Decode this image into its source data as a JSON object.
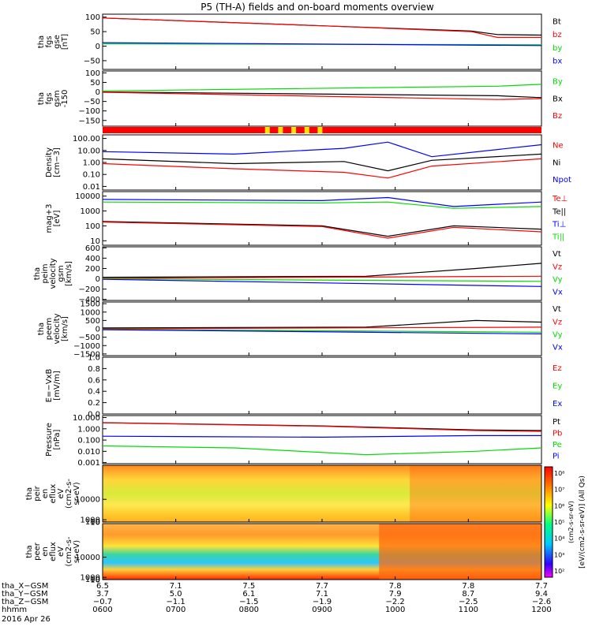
{
  "title": "P5 (TH-A) fields and on-board moments overview",
  "colors": {
    "black": "#000000",
    "red": "#ff0000",
    "green": "#00dd00",
    "blue": "#0000ff"
  },
  "chart_data": [
    {
      "type": "line",
      "panel": "fgs-gse",
      "ylabel": [
        "tha",
        "fgs",
        "gse",
        "[nT]"
      ],
      "ticks": [
        "100",
        "50",
        "0",
        "−50"
      ],
      "tick_values": [
        100,
        50,
        0,
        -50
      ],
      "ylim": [
        -80,
        110
      ],
      "series": [
        {
          "name": "Bt",
          "color": "#000000"
        },
        {
          "name": "bz",
          "color": "#ff0000"
        },
        {
          "name": "by",
          "color": "#00dd00"
        },
        {
          "name": "bx",
          "color": "#0000ff"
        }
      ],
      "legend": [
        "Bt",
        "bz",
        "by",
        "bx"
      ],
      "values": {
        "Bt": [
          [
            0,
            97
          ],
          [
            0.5,
            70
          ],
          [
            0.84,
            52
          ],
          [
            0.9,
            40
          ],
          [
            1,
            38
          ]
        ],
        "bz": [
          [
            0,
            97
          ],
          [
            0.5,
            70
          ],
          [
            0.84,
            50
          ],
          [
            0.9,
            30
          ],
          [
            1,
            30
          ]
        ],
        "by": [
          [
            0,
            8
          ],
          [
            1,
            5
          ]
        ],
        "bx": [
          [
            0,
            12
          ],
          [
            1,
            2
          ]
        ]
      }
    },
    {
      "type": "line",
      "panel": "fgs-gsm",
      "ylabel": [
        "tha",
        "fgs",
        "gsm",
        "-150"
      ],
      "ticks": [
        "100",
        "50",
        "0",
        "−50",
        "−100",
        "−150"
      ],
      "tick_values": [
        100,
        50,
        0,
        -50,
        -100,
        -150
      ],
      "ylim": [
        -180,
        110
      ],
      "series": [
        {
          "name": "By",
          "color": "#00dd00"
        },
        {
          "name": "Bx",
          "color": "#000000"
        },
        {
          "name": "Bz",
          "color": "#ff0000"
        }
      ],
      "legend": [
        "By",
        "Bx",
        "Bz"
      ],
      "values": {
        "By": [
          [
            0,
            5
          ],
          [
            0.9,
            30
          ],
          [
            1,
            40
          ]
        ],
        "Bx": [
          [
            0,
            0
          ],
          [
            0.9,
            -20
          ],
          [
            1,
            -30
          ]
        ],
        "Bz": [
          [
            0,
            -2
          ],
          [
            0.9,
            -40
          ],
          [
            1,
            -35
          ]
        ]
      }
    },
    {
      "type": "line",
      "panel": "density",
      "log": true,
      "ylabel": [
        "Density",
        "[cm−3]"
      ],
      "ticks": [
        "100.00",
        "10.00",
        "1.00",
        "0.10",
        "0.01"
      ],
      "tick_values": [
        100,
        10,
        1,
        0.1,
        0.01
      ],
      "ylim": [
        0.005,
        200
      ],
      "series": [
        {
          "name": "Ne",
          "color": "#ff0000"
        },
        {
          "name": "Ni",
          "color": "#000000"
        },
        {
          "name": "Npot",
          "color": "#0000ff"
        }
      ],
      "legend": [
        "Ne",
        "Ni",
        "Npot"
      ],
      "values": {
        "Npot": [
          [
            0,
            8
          ],
          [
            0.3,
            5
          ],
          [
            0.55,
            15
          ],
          [
            0.65,
            50
          ],
          [
            0.75,
            3
          ],
          [
            1,
            30
          ]
        ],
        "Ni": [
          [
            0,
            2
          ],
          [
            0.3,
            0.8
          ],
          [
            0.55,
            1.2
          ],
          [
            0.65,
            0.2
          ],
          [
            0.75,
            1.5
          ],
          [
            1,
            5
          ]
        ],
        "Ne": [
          [
            0,
            0.8
          ],
          [
            0.3,
            0.3
          ],
          [
            0.55,
            0.15
          ],
          [
            0.65,
            0.05
          ],
          [
            0.75,
            0.5
          ],
          [
            1,
            2
          ]
        ]
      }
    },
    {
      "type": "line",
      "panel": "temperature",
      "log": true,
      "ylabel": [
        "mag+3",
        "[eV]"
      ],
      "ticks": [
        "10000",
        "1000",
        "100",
        "10"
      ],
      "tick_values": [
        10000,
        1000,
        100,
        10
      ],
      "ylim": [
        5,
        20000
      ],
      "series": [
        {
          "name": "Te⊥",
          "color": "#ff0000"
        },
        {
          "name": "Te||",
          "color": "#000000"
        },
        {
          "name": "Ti⊥",
          "color": "#0000ff"
        },
        {
          "name": "Ti||",
          "color": "#00dd00"
        }
      ],
      "legend": [
        "Te⊥",
        "Te||",
        "Ti⊥",
        "Ti||"
      ],
      "values": {
        "Ti⊥": [
          [
            0,
            6000
          ],
          [
            0.5,
            5000
          ],
          [
            0.65,
            8000
          ],
          [
            0.8,
            2000
          ],
          [
            1,
            4000
          ]
        ],
        "Ti||": [
          [
            0,
            4000
          ],
          [
            0.5,
            3500
          ],
          [
            0.65,
            4000
          ],
          [
            0.8,
            1500
          ],
          [
            1,
            2000
          ]
        ],
        "Te||": [
          [
            0,
            200
          ],
          [
            0.5,
            100
          ],
          [
            0.65,
            20
          ],
          [
            0.8,
            100
          ],
          [
            1,
            60
          ]
        ],
        "Te⊥": [
          [
            0,
            180
          ],
          [
            0.5,
            90
          ],
          [
            0.65,
            15
          ],
          [
            0.8,
            80
          ],
          [
            1,
            40
          ]
        ]
      }
    },
    {
      "type": "line",
      "panel": "peim-velocity",
      "ylabel": [
        "tha",
        "peim",
        "velocity",
        "gsm",
        "[km/s]"
      ],
      "ticks": [
        "600",
        "400",
        "200",
        "0",
        "−200",
        "−400"
      ],
      "tick_values": [
        600,
        400,
        200,
        0,
        -200,
        -400
      ],
      "ylim": [
        -420,
        620
      ],
      "series": [
        {
          "name": "Vt",
          "color": "#000000"
        },
        {
          "name": "Vz",
          "color": "#ff0000"
        },
        {
          "name": "Vy",
          "color": "#00dd00"
        },
        {
          "name": "Vx",
          "color": "#0000ff"
        }
      ],
      "legend": [
        "Vt",
        "Vz",
        "Vy",
        "Vx"
      ],
      "values": {
        "Vt": [
          [
            0,
            30
          ],
          [
            0.6,
            50
          ],
          [
            0.85,
            200
          ],
          [
            1,
            300
          ]
        ],
        "Vz": [
          [
            0,
            10
          ],
          [
            1,
            50
          ]
        ],
        "Vy": [
          [
            0,
            0
          ],
          [
            1,
            -50
          ]
        ],
        "Vx": [
          [
            0,
            -10
          ],
          [
            1,
            -150
          ]
        ]
      }
    },
    {
      "type": "line",
      "panel": "peem-velocity",
      "ylabel": [
        "tha",
        "peem",
        "velocity",
        "[km/s]"
      ],
      "ticks": [
        "1500",
        "1000",
        "500",
        "0",
        "−500",
        "−1000",
        "−1500"
      ],
      "tick_values": [
        1500,
        1000,
        500,
        0,
        -500,
        -1000,
        -1500
      ],
      "ylim": [
        -1600,
        1600
      ],
      "series": [
        {
          "name": "Vt",
          "color": "#000000"
        },
        {
          "name": "Vz",
          "color": "#ff0000"
        },
        {
          "name": "Vy",
          "color": "#00dd00"
        },
        {
          "name": "Vx",
          "color": "#0000ff"
        }
      ],
      "legend": [
        "Vt",
        "Vz",
        "Vy",
        "Vx"
      ],
      "values": {
        "Vt": [
          [
            0,
            50
          ],
          [
            0.6,
            100
          ],
          [
            0.85,
            500
          ],
          [
            1,
            400
          ]
        ],
        "Vz": [
          [
            0,
            0
          ],
          [
            1,
            100
          ]
        ],
        "Vy": [
          [
            0,
            -30
          ],
          [
            1,
            -200
          ]
        ],
        "Vx": [
          [
            0,
            -50
          ],
          [
            1,
            -300
          ]
        ]
      }
    },
    {
      "type": "line",
      "panel": "efield",
      "ylabel": [
        "E=−VxB",
        "[mV/m]"
      ],
      "ticks": [
        "1.0",
        "0.8",
        "0.6",
        "0.4",
        "0.2",
        "0.0"
      ],
      "tick_values": [
        1,
        0.8,
        0.6,
        0.4,
        0.2,
        0
      ],
      "ylim": [
        0,
        1
      ],
      "series": [
        {
          "name": "Ez",
          "color": "#ff0000"
        },
        {
          "name": "Ey",
          "color": "#00dd00"
        },
        {
          "name": "Ex",
          "color": "#0000ff"
        }
      ],
      "legend": [
        "Ez",
        "Ey",
        "Ex"
      ],
      "values": {}
    },
    {
      "type": "line",
      "panel": "pressure",
      "log": true,
      "ylabel": [
        "Pressure",
        "[nPa]"
      ],
      "ticks": [
        "10.000",
        "1.000",
        "0.100",
        "0.010",
        "0.001"
      ],
      "tick_values": [
        10,
        1,
        0.1,
        0.01,
        0.001
      ],
      "ylim": [
        0.0008,
        15
      ],
      "series": [
        {
          "name": "Pt",
          "color": "#000000"
        },
        {
          "name": "Pb",
          "color": "#ff0000"
        },
        {
          "name": "Pe",
          "color": "#00dd00"
        },
        {
          "name": "Pi",
          "color": "#0000ff"
        }
      ],
      "legend": [
        "Pt",
        "Pb",
        "Pe",
        "Pi"
      ],
      "values": {
        "Pt": [
          [
            0,
            3.5
          ],
          [
            0.5,
            1.8
          ],
          [
            0.85,
            0.8
          ],
          [
            1,
            0.7
          ]
        ],
        "Pb": [
          [
            0,
            3.4
          ],
          [
            0.5,
            1.7
          ],
          [
            0.85,
            0.7
          ],
          [
            1,
            0.6
          ]
        ],
        "Pi": [
          [
            0,
            0.22
          ],
          [
            0.5,
            0.18
          ],
          [
            0.85,
            0.25
          ],
          [
            1,
            0.25
          ]
        ],
        "Pe": [
          [
            0,
            0.03
          ],
          [
            0.3,
            0.02
          ],
          [
            0.6,
            0.005
          ],
          [
            0.85,
            0.01
          ],
          [
            1,
            0.02
          ]
        ]
      }
    },
    {
      "type": "heatmap",
      "panel": "peir-spectrogram",
      "ylabel": [
        "tha",
        "peir",
        "en",
        "eflux",
        "eV",
        "(cm2-s-",
        "sr-eV)"
      ],
      "ticks": [
        "10000",
        "1000",
        "100",
        "10"
      ],
      "tick_values": [
        10000,
        1000,
        100,
        10
      ],
      "ylim": [
        6,
        25000
      ]
    },
    {
      "type": "heatmap",
      "panel": "peer-spectrogram",
      "ylabel": [
        "tha",
        "peer",
        "en",
        "eflux",
        "eV",
        "(cm2-s-",
        "sr-eV)"
      ],
      "ticks": [
        "10000",
        "1000",
        "100",
        "10"
      ],
      "tick_values": [
        10000,
        1000,
        100,
        10
      ],
      "ylim": [
        6,
        25000
      ]
    }
  ],
  "colorbar": {
    "label": "[eV/(cm2-s-sr-eV)] (All Qs)",
    "label_overlay": "(cm2-s-sr-eV)",
    "ticks": [
      "10⁸",
      "10⁷",
      "10⁶",
      "10⁵",
      "10⁴",
      "10³",
      "10²"
    ],
    "values": [
      100000000.0,
      10000000.0,
      1000000.0,
      100000.0,
      10000.0,
      1000.0,
      100.0
    ]
  },
  "footer": {
    "rows": [
      {
        "label": "tha_X−GSM",
        "values": [
          "6.5",
          "7.1",
          "7.5",
          "7.7",
          "7.8",
          "7.8",
          "7.7"
        ]
      },
      {
        "label": "tha_Y−GSM",
        "values": [
          "3.7",
          "5.0",
          "6.1",
          "7.1",
          "7.9",
          "8.7",
          "9.4"
        ]
      },
      {
        "label": "tha_Z−GSM",
        "values": [
          "−0.7",
          "−1.1",
          "−1.5",
          "−1.9",
          "−2.2",
          "−2.5",
          "−2.6"
        ]
      },
      {
        "label": "hhmm",
        "values": [
          "0600",
          "0700",
          "0800",
          "0900",
          "1000",
          "1100",
          "1200"
        ]
      }
    ],
    "date": "2016 Apr 26"
  },
  "time_ticks": [
    "0600",
    "0700",
    "0800",
    "0900",
    "1000",
    "1100",
    "1200"
  ]
}
